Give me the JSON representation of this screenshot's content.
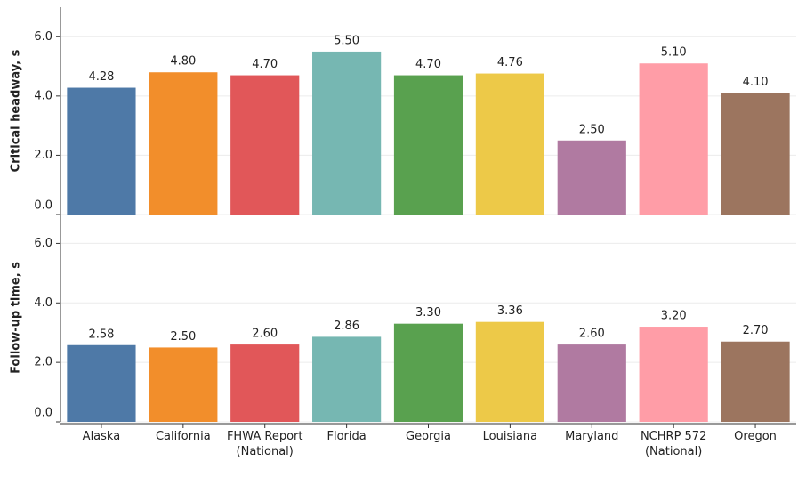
{
  "chart_data": {
    "type": "bar",
    "categories": [
      "Alaska",
      "California",
      "FHWA Report (National)",
      "Florida",
      "Georgia",
      "Louisiana",
      "Maryland",
      "NCHRP 572 (National)",
      "Oregon"
    ],
    "colors": [
      "#4e79a7",
      "#f28e2b",
      "#e15759",
      "#76b7b2",
      "#59a14f",
      "#edc948",
      "#b07aa1",
      "#ff9da7",
      "#9c755f"
    ],
    "grid": true,
    "panels": [
      {
        "ylabel": "Critical headway, s",
        "values": [
          4.28,
          4.8,
          4.7,
          5.5,
          4.7,
          4.76,
          2.5,
          5.1,
          4.1
        ],
        "value_labels": [
          "4.28",
          "4.80",
          "4.70",
          "5.50",
          "4.70",
          "4.76",
          "2.50",
          "5.10",
          "4.10"
        ],
        "ylim": [
          0,
          7
        ],
        "yticks": [
          {
            "value": 0,
            "label": "0.0"
          },
          {
            "value": 2,
            "label": "2.0"
          },
          {
            "value": 4,
            "label": "4.0"
          },
          {
            "value": 6,
            "label": "6.0"
          }
        ]
      },
      {
        "ylabel": "Follow-up time, s",
        "values": [
          2.58,
          2.5,
          2.6,
          2.86,
          3.3,
          3.36,
          2.6,
          3.2,
          2.7
        ],
        "value_labels": [
          "2.58",
          "2.50",
          "2.60",
          "2.86",
          "3.30",
          "3.36",
          "2.60",
          "3.20",
          "2.70"
        ],
        "ylim": [
          0,
          7
        ],
        "yticks": [
          {
            "value": 0,
            "label": "0.0"
          },
          {
            "value": 2,
            "label": "2.0"
          },
          {
            "value": 4,
            "label": "4.0"
          },
          {
            "value": 6,
            "label": "6.0"
          }
        ]
      }
    ]
  }
}
